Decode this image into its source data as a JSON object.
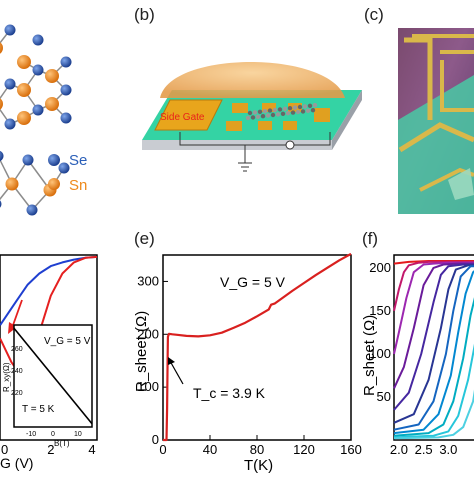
{
  "panels": {
    "b": "(b)",
    "c": "(c)",
    "e": "(e)",
    "f": "(f)"
  },
  "panel_a": {
    "legend": [
      "Se",
      "Sn"
    ],
    "colors": {
      "Se": "#2b5fb8",
      "Sn": "#ee8a1c"
    }
  },
  "panel_b": {
    "side_gate_label": "Side Gate",
    "colors": {
      "droplet": "#f2b56b",
      "substrate_top": "#2fd0a0",
      "gate": "#e7a51a"
    }
  },
  "panel_d": {
    "xlabel": "G (V)",
    "x_ticks": [
      "0",
      "2",
      "4"
    ],
    "inset": {
      "ylabel": "R_xy(Ω)",
      "y_ticks": [
        "260",
        "240",
        "220"
      ],
      "x_ticks": [
        "-10",
        "0",
        "10"
      ],
      "xlabel": "B(T)",
      "annotation_vg": "V_G = 5 V",
      "annotation_t": "T = 5 K"
    }
  },
  "chart_data": [
    {
      "panel": "e",
      "type": "line",
      "xlabel": "T(K)",
      "ylabel": "R_sheet (Ω)",
      "xlim": [
        0,
        160
      ],
      "ylim": [
        0,
        350
      ],
      "x_ticks": [
        0,
        40,
        80,
        120,
        160
      ],
      "y_ticks": [
        0,
        100,
        200,
        300
      ],
      "annotation_vg": "V_G = 5 V",
      "annotation_tc": "T_c = 3.9 K",
      "series": [
        {
          "color": "#d9201f",
          "x": [
            0,
            3.0,
            3.5,
            3.9,
            4.2,
            5,
            8,
            12,
            20,
            30,
            40,
            50,
            60,
            70,
            80,
            90,
            92,
            95,
            100,
            110,
            120,
            130,
            140,
            150,
            160
          ],
          "y": [
            0,
            0,
            60,
            150,
            195,
            201,
            200,
            199,
            197,
            196,
            198,
            203,
            212,
            222,
            234,
            247,
            256,
            258,
            266,
            282,
            297,
            312,
            326,
            340,
            352
          ]
        }
      ]
    },
    {
      "panel": "f",
      "type": "line",
      "ylabel": "R_sheet (Ω)",
      "x_ticks": [
        "2.0",
        "2.5",
        "3.0"
      ],
      "y_ticks": [
        "200",
        "150",
        "100",
        "50"
      ],
      "xlim": [
        1.9,
        3.6
      ],
      "ylim": [
        0,
        215
      ],
      "series": [
        {
          "color": "#e41a1c",
          "x": [
            1.9,
            2.2,
            2.6,
            3.0,
            3.3,
            3.6
          ],
          "y": [
            205,
            207,
            208,
            208,
            208,
            208
          ]
        },
        {
          "color": "#c2186b",
          "x": [
            1.9,
            2.0,
            2.1,
            2.2,
            2.4,
            2.6,
            3.0,
            3.6
          ],
          "y": [
            150,
            175,
            195,
            203,
            206,
            207,
            207,
            207
          ]
        },
        {
          "color": "#9c27b0",
          "x": [
            1.9,
            2.0,
            2.15,
            2.3,
            2.5,
            2.7,
            3.0,
            3.6
          ],
          "y": [
            100,
            125,
            165,
            195,
            204,
            205,
            206,
            206
          ]
        },
        {
          "color": "#6a1b9a",
          "x": [
            1.9,
            2.1,
            2.3,
            2.5,
            2.7,
            2.9,
            3.2,
            3.6
          ],
          "y": [
            60,
            85,
            130,
            180,
            200,
            204,
            205,
            205
          ]
        },
        {
          "color": "#4527a0",
          "x": [
            1.9,
            2.2,
            2.45,
            2.7,
            2.85,
            3.0,
            3.3,
            3.6
          ],
          "y": [
            35,
            55,
            100,
            160,
            192,
            202,
            204,
            204
          ]
        },
        {
          "color": "#283593",
          "x": [
            1.9,
            2.3,
            2.6,
            2.85,
            3.0,
            3.15,
            3.4,
            3.6
          ],
          "y": [
            20,
            30,
            70,
            130,
            175,
            198,
            203,
            203
          ]
        },
        {
          "color": "#1565c0",
          "x": [
            1.9,
            2.4,
            2.7,
            2.95,
            3.1,
            3.25,
            3.45,
            3.6
          ],
          "y": [
            12,
            18,
            45,
            100,
            150,
            190,
            202,
            202
          ]
        },
        {
          "color": "#0288d1",
          "x": [
            1.9,
            2.5,
            2.8,
            3.05,
            3.2,
            3.35,
            3.5,
            3.6
          ],
          "y": [
            8,
            12,
            30,
            75,
            125,
            170,
            195,
            200
          ]
        },
        {
          "color": "#00acc1",
          "x": [
            1.9,
            2.6,
            2.9,
            3.1,
            3.3,
            3.45,
            3.6
          ],
          "y": [
            5,
            8,
            18,
            45,
            95,
            145,
            180
          ]
        },
        {
          "color": "#26c6da",
          "x": [
            1.9,
            2.7,
            3.0,
            3.2,
            3.4,
            3.6
          ],
          "y": [
            3,
            5,
            10,
            28,
            70,
            130
          ]
        },
        {
          "color": "#4dd0e1",
          "x": [
            1.9,
            2.8,
            3.1,
            3.3,
            3.5,
            3.6
          ],
          "y": [
            2,
            3,
            6,
            15,
            45,
            80
          ]
        }
      ]
    },
    {
      "panel": "d",
      "type": "line",
      "xlabel": "G (V)",
      "x_ticks": [
        "0",
        "2",
        "4"
      ],
      "xlim": [
        -0.2,
        4
      ],
      "ylim": [
        0,
        1
      ],
      "series": [
        {
          "color": "#1f3fd0",
          "x": [
            -0.2,
            0.5,
            1.0,
            1.5,
            2.0,
            2.5,
            3.0,
            3.5,
            4.0
          ],
          "y": [
            0.62,
            0.75,
            0.84,
            0.9,
            0.94,
            0.96,
            0.975,
            0.985,
            0.99
          ]
        },
        {
          "color": "#e52020",
          "x": [
            -0.2,
            0.3,
            0.7,
            1.0,
            1.3,
            1.6,
            2.0,
            2.5,
            3.0,
            3.5,
            4.0
          ],
          "y": [
            0.55,
            0.42,
            0.35,
            0.37,
            0.48,
            0.62,
            0.78,
            0.9,
            0.96,
            0.985,
            0.99
          ]
        }
      ]
    },
    {
      "panel": "d-inset",
      "type": "line",
      "xlabel": "B(T)",
      "ylabel": "R_xy(Ω)",
      "xlim": [
        -14,
        14
      ],
      "ylim": [
        208,
        272
      ],
      "series": [
        {
          "color": "#000000",
          "x": [
            -14,
            14
          ],
          "y": [
            270,
            210
          ]
        }
      ]
    }
  ]
}
